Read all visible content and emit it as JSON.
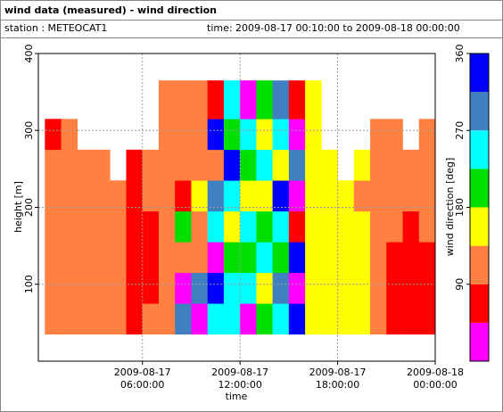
{
  "header": {
    "title": "wind data (measured) - wind direction",
    "station": "station : METEOCAT1",
    "time": "time: 2009-08-17 00:10:00 to 2009-08-18 00:00:00"
  },
  "chart_data": {
    "type": "heatmap",
    "x_label": "time",
    "y_label": "height [m]",
    "colorbar_label": "wind direction [deg]",
    "xbins": [
      0,
      1,
      2,
      3,
      4,
      5,
      6,
      7,
      8,
      9,
      10,
      11,
      12,
      13,
      14,
      15,
      16,
      17,
      18,
      19,
      20,
      21,
      22,
      23,
      24
    ],
    "ybins": [
      35,
      75,
      115,
      155,
      195,
      235,
      275,
      315,
      365
    ],
    "values": [
      [
        120,
        120,
        120,
        120,
        120,
        120,
        70,
        null
      ],
      [
        120,
        120,
        120,
        120,
        120,
        120,
        120,
        null
      ],
      [
        120,
        120,
        120,
        120,
        120,
        120,
        null,
        null
      ],
      [
        120,
        120,
        120,
        120,
        120,
        120,
        null,
        null
      ],
      [
        120,
        120,
        120,
        120,
        120,
        null,
        null,
        null
      ],
      [
        70,
        70,
        70,
        70,
        70,
        70,
        null,
        null
      ],
      [
        120,
        70,
        70,
        70,
        120,
        120,
        null,
        null
      ],
      [
        120,
        120,
        120,
        120,
        120,
        120,
        120,
        120
      ],
      [
        300,
        20,
        120,
        200,
        70,
        120,
        120,
        120
      ],
      [
        20,
        300,
        120,
        120,
        160,
        120,
        120,
        120
      ],
      [
        250,
        340,
        20,
        250,
        290,
        120,
        340,
        70
      ],
      [
        250,
        250,
        200,
        160,
        250,
        340,
        200,
        250
      ],
      [
        20,
        250,
        200,
        250,
        160,
        200,
        250,
        20
      ],
      [
        200,
        160,
        250,
        200,
        160,
        250,
        160,
        200
      ],
      [
        250,
        300,
        200,
        250,
        340,
        160,
        250,
        290
      ],
      [
        340,
        20,
        340,
        70,
        20,
        300,
        20,
        70
      ],
      [
        160,
        160,
        160,
        160,
        160,
        160,
        160,
        160
      ],
      [
        160,
        160,
        160,
        160,
        160,
        160,
        null,
        null
      ],
      [
        160,
        160,
        160,
        160,
        160,
        null,
        null,
        null
      ],
      [
        160,
        160,
        160,
        160,
        120,
        160,
        null,
        null
      ],
      [
        120,
        120,
        120,
        120,
        120,
        120,
        120,
        null
      ],
      [
        70,
        70,
        70,
        120,
        120,
        120,
        120,
        null
      ],
      [
        70,
        70,
        70,
        70,
        120,
        120,
        null,
        null
      ],
      [
        70,
        70,
        70,
        120,
        120,
        120,
        120,
        null
      ]
    ],
    "xlim": [
      -0.4,
      24
    ],
    "ylim": [
      0,
      400
    ],
    "xticks": [
      {
        "value": 6,
        "label": [
          "2009-08-17",
          "06:00:00"
        ]
      },
      {
        "value": 12,
        "label": [
          "2009-08-17",
          "12:00:00"
        ]
      },
      {
        "value": 18,
        "label": [
          "2009-08-17",
          "18:00:00"
        ]
      },
      {
        "value": 24,
        "label": [
          "2009-08-18",
          "00:00:00"
        ]
      }
    ],
    "yticks": [
      100,
      200,
      300,
      400
    ],
    "clim": [
      0,
      360
    ],
    "cticks": [
      90,
      180,
      270,
      360
    ],
    "colorscale": [
      "#ff00ff",
      "#ff0000",
      "#ff8040",
      "#ffff00",
      "#00e000",
      "#00ffff",
      "#4080c0",
      "#0000ff"
    ],
    "grid": true
  }
}
